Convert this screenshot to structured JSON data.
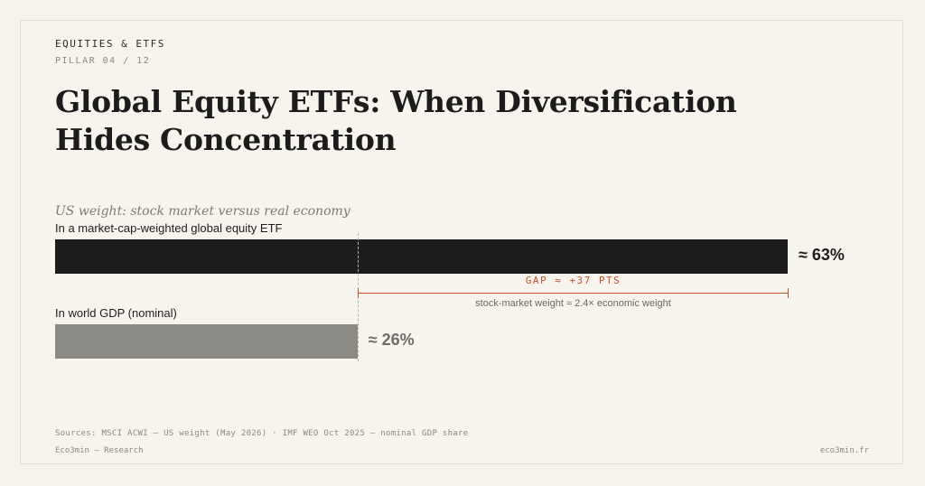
{
  "header": {
    "eyebrow": "EQUITIES & ETFS",
    "pillar": "PILLAR 04 / 12",
    "title": "Global Equity ETFs: When Diversification Hides Concentration"
  },
  "chart_data": {
    "type": "bar",
    "orientation": "horizontal",
    "title": "US weight: stock market versus real economy",
    "categories": [
      "In a market-cap-weighted global equity ETF",
      "In world GDP (nominal)"
    ],
    "values": [
      63,
      26
    ],
    "value_labels": [
      "≈ 63%",
      "≈ 26%"
    ],
    "colors": [
      "#1c1c1c",
      "#8a8984"
    ],
    "value_colors": [
      "#1c1c1c",
      "#6e6d69"
    ],
    "unit": "%",
    "xlim": [
      0,
      63
    ],
    "grid": false,
    "legend": "none",
    "annotation": {
      "gap_label": "GAP ≈ +37 PTS",
      "gap_points": 37,
      "ratio_label": "stock-market weight ≈ 2.4× economic weight",
      "color": "#c5502d"
    }
  },
  "footer": {
    "source": "Sources: MSCI ACWI — US weight (May 2026) · IMF WEO Oct 2025 — nominal GDP share",
    "brand": "Eco3min — Research",
    "url": "eco3min.fr"
  }
}
